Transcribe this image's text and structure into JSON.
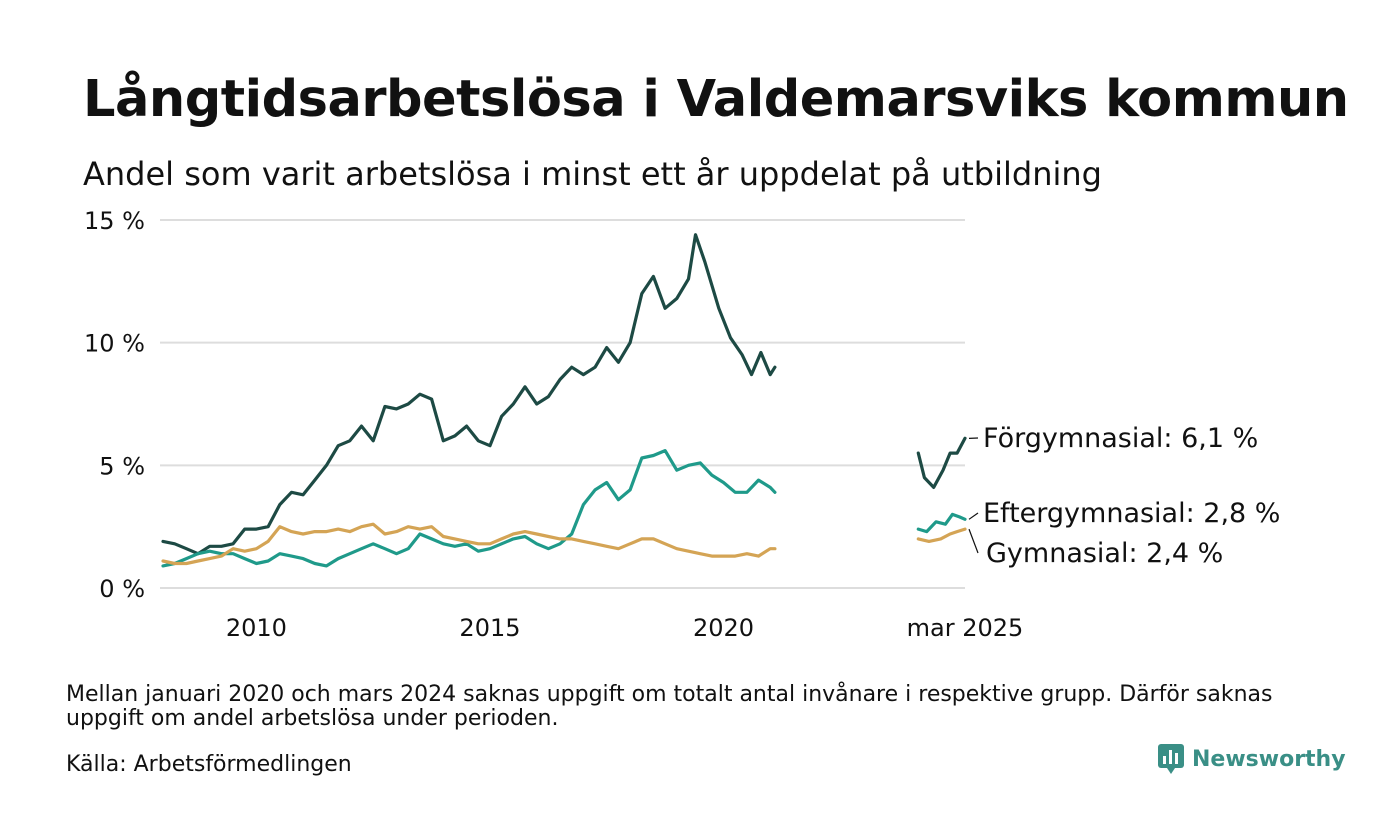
{
  "title": "Långtidsarbetslösa i Valdemarsviks kommun",
  "subtitle": "Andel som varit arbetslösa i minst ett år uppdelat på utbildning",
  "footnote": "Mellan januari 2020 och mars 2024 saknas uppgift om totalt antal invånare i respektive grupp. Därför saknas uppgift om andel arbetslösa under perioden.",
  "source": "Källa: Arbetsförmedlingen",
  "brand": "Newsworthy",
  "colors": {
    "forgymnasial": "#1d4a44",
    "eftergymnasial": "#1f9a8a",
    "gymnasial": "#d4a455",
    "grid": "#dddddd",
    "brand": "#3a8f86"
  },
  "chart_data": {
    "type": "line",
    "title": "Långtidsarbetslösa i Valdemarsviks kommun",
    "subtitle": "Andel som varit arbetslösa i minst ett år uppdelat på utbildning",
    "y_ticks": [
      {
        "value": 0,
        "label": "0 %"
      },
      {
        "value": 5,
        "label": "5 %"
      },
      {
        "value": 10,
        "label": "10 %"
      },
      {
        "value": 15,
        "label": "15 %"
      }
    ],
    "x_ticks": [
      {
        "value": 2010,
        "label": "2010"
      },
      {
        "value": 2015,
        "label": "2015"
      },
      {
        "value": 2020,
        "label": "2020"
      },
      {
        "value": 2025.17,
        "label": "mar 2025"
      }
    ],
    "xlim": [
      2008.0,
      2025.17
    ],
    "ylim": [
      0,
      15
    ],
    "grid": true,
    "series": [
      {
        "name": "Förgymnasial",
        "color": "#1d4a44",
        "end_label": "Förgymnasial: 6,1 %",
        "segments": [
          [
            [
              2008.0,
              1.9
            ],
            [
              2008.25,
              1.8
            ],
            [
              2008.5,
              1.6
            ],
            [
              2008.75,
              1.4
            ],
            [
              2009.0,
              1.7
            ],
            [
              2009.25,
              1.7
            ],
            [
              2009.5,
              1.8
            ],
            [
              2009.75,
              2.4
            ],
            [
              2010.0,
              2.4
            ],
            [
              2010.25,
              2.5
            ],
            [
              2010.5,
              3.4
            ],
            [
              2010.75,
              3.9
            ],
            [
              2011.0,
              3.8
            ],
            [
              2011.25,
              4.4
            ],
            [
              2011.5,
              5.0
            ],
            [
              2011.75,
              5.8
            ],
            [
              2012.0,
              6.0
            ],
            [
              2012.25,
              6.6
            ],
            [
              2012.5,
              6.0
            ],
            [
              2012.75,
              7.4
            ],
            [
              2013.0,
              7.3
            ],
            [
              2013.25,
              7.5
            ],
            [
              2013.5,
              7.9
            ],
            [
              2013.75,
              7.7
            ],
            [
              2014.0,
              6.0
            ],
            [
              2014.25,
              6.2
            ],
            [
              2014.5,
              6.6
            ],
            [
              2014.75,
              6.0
            ],
            [
              2015.0,
              5.8
            ],
            [
              2015.25,
              7.0
            ],
            [
              2015.5,
              7.5
            ],
            [
              2015.75,
              8.2
            ],
            [
              2016.0,
              7.5
            ],
            [
              2016.25,
              7.8
            ],
            [
              2016.5,
              8.5
            ],
            [
              2016.75,
              9.0
            ],
            [
              2017.0,
              8.7
            ],
            [
              2017.25,
              9.0
            ],
            [
              2017.5,
              9.8
            ],
            [
              2017.75,
              9.2
            ],
            [
              2018.0,
              10.0
            ],
            [
              2018.25,
              12.0
            ],
            [
              2018.5,
              12.7
            ],
            [
              2018.75,
              11.4
            ],
            [
              2019.0,
              11.8
            ],
            [
              2019.25,
              12.6
            ],
            [
              2019.4,
              14.4
            ],
            [
              2019.6,
              13.3
            ],
            [
              2019.9,
              11.4
            ],
            [
              2020.15,
              10.2
            ],
            [
              2020.4,
              9.5
            ],
            [
              2020.6,
              8.7
            ],
            [
              2020.8,
              9.6
            ],
            [
              2021.0,
              8.7
            ],
            [
              2021.1,
              9.0
            ]
          ],
          [
            [
              2024.17,
              5.5
            ],
            [
              2024.3,
              4.5
            ],
            [
              2024.5,
              4.1
            ],
            [
              2024.7,
              4.8
            ],
            [
              2024.85,
              5.5
            ],
            [
              2025.0,
              5.5
            ],
            [
              2025.17,
              6.1
            ]
          ]
        ]
      },
      {
        "name": "Eftergymnasial",
        "color": "#1f9a8a",
        "end_label": "Eftergymnasial: 2,8 %",
        "segments": [
          [
            [
              2008.0,
              0.9
            ],
            [
              2008.25,
              1.0
            ],
            [
              2008.5,
              1.2
            ],
            [
              2008.75,
              1.4
            ],
            [
              2009.0,
              1.5
            ],
            [
              2009.25,
              1.4
            ],
            [
              2009.5,
              1.4
            ],
            [
              2009.75,
              1.2
            ],
            [
              2010.0,
              1.0
            ],
            [
              2010.25,
              1.1
            ],
            [
              2010.5,
              1.4
            ],
            [
              2010.75,
              1.3
            ],
            [
              2011.0,
              1.2
            ],
            [
              2011.25,
              1.0
            ],
            [
              2011.5,
              0.9
            ],
            [
              2011.75,
              1.2
            ],
            [
              2012.0,
              1.4
            ],
            [
              2012.25,
              1.6
            ],
            [
              2012.5,
              1.8
            ],
            [
              2012.75,
              1.6
            ],
            [
              2013.0,
              1.4
            ],
            [
              2013.25,
              1.6
            ],
            [
              2013.5,
              2.2
            ],
            [
              2013.75,
              2.0
            ],
            [
              2014.0,
              1.8
            ],
            [
              2014.25,
              1.7
            ],
            [
              2014.5,
              1.8
            ],
            [
              2014.75,
              1.5
            ],
            [
              2015.0,
              1.6
            ],
            [
              2015.25,
              1.8
            ],
            [
              2015.5,
              2.0
            ],
            [
              2015.75,
              2.1
            ],
            [
              2016.0,
              1.8
            ],
            [
              2016.25,
              1.6
            ],
            [
              2016.5,
              1.8
            ],
            [
              2016.75,
              2.2
            ],
            [
              2017.0,
              3.4
            ],
            [
              2017.25,
              4.0
            ],
            [
              2017.5,
              4.3
            ],
            [
              2017.75,
              3.6
            ],
            [
              2018.0,
              4.0
            ],
            [
              2018.25,
              5.3
            ],
            [
              2018.5,
              5.4
            ],
            [
              2018.75,
              5.6
            ],
            [
              2019.0,
              4.8
            ],
            [
              2019.25,
              5.0
            ],
            [
              2019.5,
              5.1
            ],
            [
              2019.75,
              4.6
            ],
            [
              2020.0,
              4.3
            ],
            [
              2020.25,
              3.9
            ],
            [
              2020.5,
              3.9
            ],
            [
              2020.75,
              4.4
            ],
            [
              2021.0,
              4.1
            ],
            [
              2021.1,
              3.9
            ]
          ],
          [
            [
              2024.17,
              2.4
            ],
            [
              2024.35,
              2.3
            ],
            [
              2024.55,
              2.7
            ],
            [
              2024.75,
              2.6
            ],
            [
              2024.9,
              3.0
            ],
            [
              2025.05,
              2.9
            ],
            [
              2025.17,
              2.8
            ]
          ]
        ]
      },
      {
        "name": "Gymnasial",
        "color": "#d4a455",
        "end_label": "Gymnasial: 2,4 %",
        "segments": [
          [
            [
              2008.0,
              1.1
            ],
            [
              2008.25,
              1.0
            ],
            [
              2008.5,
              1.0
            ],
            [
              2008.75,
              1.1
            ],
            [
              2009.0,
              1.2
            ],
            [
              2009.25,
              1.3
            ],
            [
              2009.5,
              1.6
            ],
            [
              2009.75,
              1.5
            ],
            [
              2010.0,
              1.6
            ],
            [
              2010.25,
              1.9
            ],
            [
              2010.5,
              2.5
            ],
            [
              2010.75,
              2.3
            ],
            [
              2011.0,
              2.2
            ],
            [
              2011.25,
              2.3
            ],
            [
              2011.5,
              2.3
            ],
            [
              2011.75,
              2.4
            ],
            [
              2012.0,
              2.3
            ],
            [
              2012.25,
              2.5
            ],
            [
              2012.5,
              2.6
            ],
            [
              2012.75,
              2.2
            ],
            [
              2013.0,
              2.3
            ],
            [
              2013.25,
              2.5
            ],
            [
              2013.5,
              2.4
            ],
            [
              2013.75,
              2.5
            ],
            [
              2014.0,
              2.1
            ],
            [
              2014.25,
              2.0
            ],
            [
              2014.5,
              1.9
            ],
            [
              2014.75,
              1.8
            ],
            [
              2015.0,
              1.8
            ],
            [
              2015.25,
              2.0
            ],
            [
              2015.5,
              2.2
            ],
            [
              2015.75,
              2.3
            ],
            [
              2016.0,
              2.2
            ],
            [
              2016.25,
              2.1
            ],
            [
              2016.5,
              2.0
            ],
            [
              2016.75,
              2.0
            ],
            [
              2017.0,
              1.9
            ],
            [
              2017.25,
              1.8
            ],
            [
              2017.5,
              1.7
            ],
            [
              2017.75,
              1.6
            ],
            [
              2018.0,
              1.8
            ],
            [
              2018.25,
              2.0
            ],
            [
              2018.5,
              2.0
            ],
            [
              2018.75,
              1.8
            ],
            [
              2019.0,
              1.6
            ],
            [
              2019.25,
              1.5
            ],
            [
              2019.5,
              1.4
            ],
            [
              2019.75,
              1.3
            ],
            [
              2020.0,
              1.3
            ],
            [
              2020.25,
              1.3
            ],
            [
              2020.5,
              1.4
            ],
            [
              2020.75,
              1.3
            ],
            [
              2021.0,
              1.6
            ],
            [
              2021.1,
              1.6
            ]
          ],
          [
            [
              2024.17,
              2.0
            ],
            [
              2024.4,
              1.9
            ],
            [
              2024.65,
              2.0
            ],
            [
              2024.85,
              2.2
            ],
            [
              2025.0,
              2.3
            ],
            [
              2025.17,
              2.4
            ]
          ]
        ]
      }
    ]
  }
}
